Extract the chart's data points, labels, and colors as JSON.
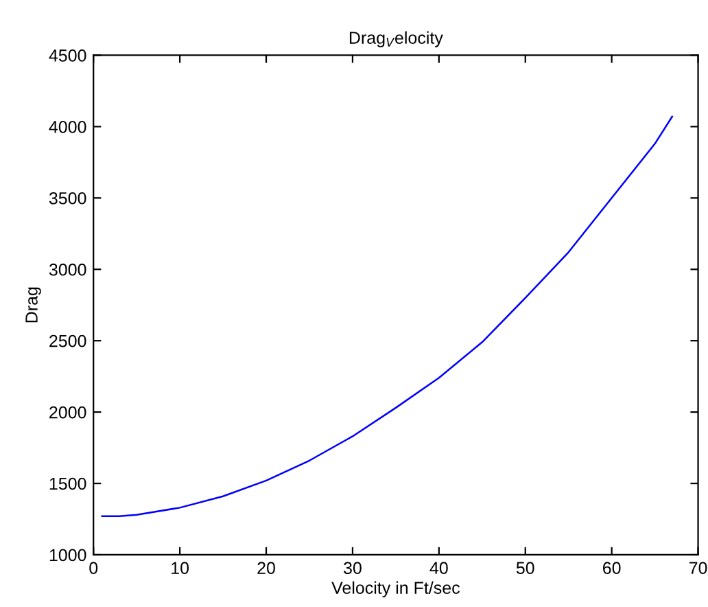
{
  "chart_data": {
    "type": "line",
    "title": "Drag$_{V}$elocity",
    "xlabel": "Velocity in Ft/sec",
    "ylabel": "Drag",
    "x": [
      1,
      3,
      5,
      10,
      15,
      20,
      25,
      30,
      35,
      40,
      45,
      50,
      55,
      60,
      65,
      67
    ],
    "series": [
      {
        "color": "#0000ff",
        "values": [
          1270,
          1270,
          1280,
          1330,
          1410,
          1520,
          1660,
          1830,
          2030,
          2240,
          2490,
          2800,
          3120,
          3500,
          3880,
          4070
        ]
      }
    ],
    "xlim": [
      0,
      70
    ],
    "xticks": [
      0,
      10,
      20,
      30,
      40,
      50,
      60,
      70
    ],
    "ylim": [
      1000,
      4500
    ],
    "yticks": [
      1000,
      1500,
      2000,
      2500,
      3000,
      3500,
      4000,
      4500
    ],
    "grid": false,
    "legend": false,
    "marker": "none",
    "line_style": "solid"
  }
}
